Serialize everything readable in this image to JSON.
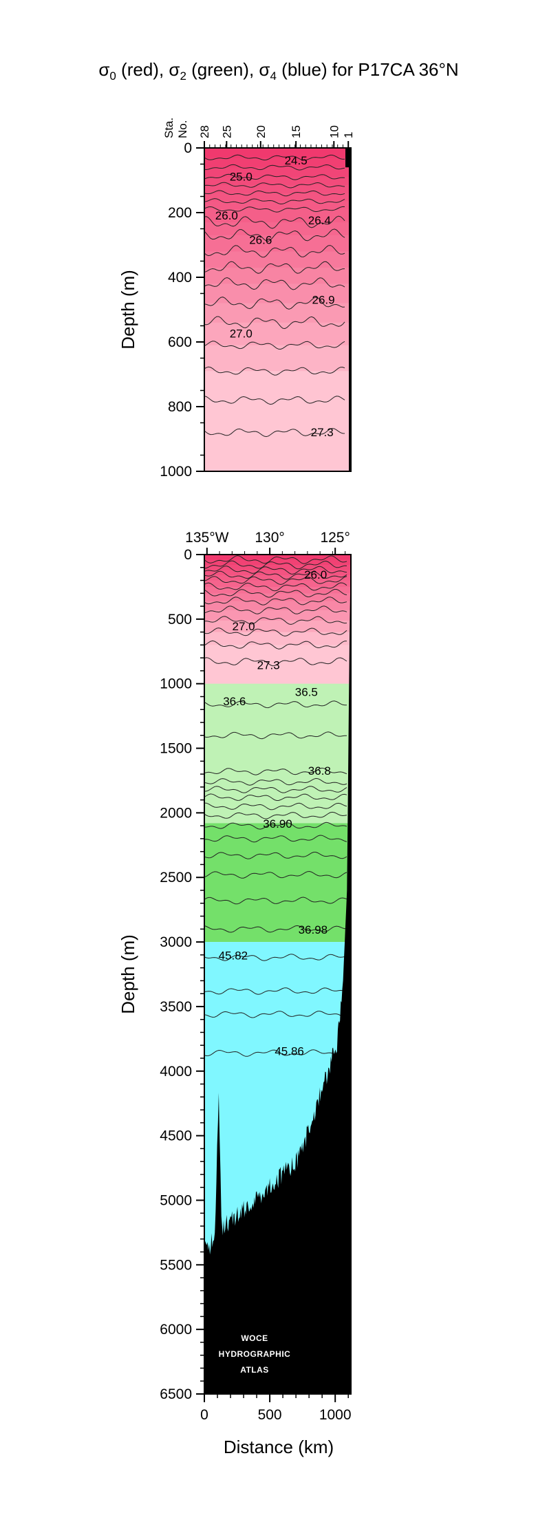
{
  "chart_data": [
    {
      "type": "contour",
      "panel": "upper",
      "title": "σ0 (red), σ2 (green), σ4 (blue) for P17CA 36°N",
      "ylabel": "Depth (m)",
      "ylim": [
        0,
        1000
      ],
      "y_ticks": [
        0,
        200,
        400,
        600,
        800,
        1000
      ],
      "y_tick_labels": [
        "0",
        "200",
        "400",
        "600",
        "800",
        "1000"
      ],
      "xlim": [
        0,
        1120
      ],
      "station_axis_title": [
        "Sta.",
        "No."
      ],
      "station_ticks": [
        {
          "station": 28,
          "label": "28",
          "distance_km": 0
        },
        {
          "station": 25,
          "label": "25",
          "distance_km": 170
        },
        {
          "station": 20,
          "label": "20",
          "distance_km": 430
        },
        {
          "station": 15,
          "label": "15",
          "distance_km": 700
        },
        {
          "station": 10,
          "label": "10",
          "distance_km": 990
        },
        {
          "station": 1,
          "label": "1",
          "distance_km": 1100
        }
      ],
      "contour_labels": [
        {
          "text": "24.5",
          "distance_km": 700,
          "depth_m": 45
        },
        {
          "text": "25.0",
          "distance_km": 280,
          "depth_m": 95
        },
        {
          "text": "26.0",
          "distance_km": 170,
          "depth_m": 215
        },
        {
          "text": "26.4",
          "distance_km": 880,
          "depth_m": 230
        },
        {
          "text": "26.6",
          "distance_km": 430,
          "depth_m": 290
        },
        {
          "text": "26.9",
          "distance_km": 910,
          "depth_m": 475
        },
        {
          "text": "27.0",
          "distance_km": 280,
          "depth_m": 580
        },
        {
          "text": "27.3",
          "distance_km": 900,
          "depth_m": 885
        }
      ]
    },
    {
      "type": "contour",
      "panel": "lower",
      "ylabel": "Depth (m)",
      "xlabel": "Distance (km)",
      "ylim": [
        0,
        6500
      ],
      "y_ticks": [
        0,
        500,
        1000,
        1500,
        2000,
        2500,
        3000,
        3500,
        4000,
        4500,
        5000,
        5500,
        6000,
        6500
      ],
      "y_tick_labels": [
        "0",
        "500",
        "1000",
        "1500",
        "2000",
        "2500",
        "3000",
        "3500",
        "4000",
        "4500",
        "5000",
        "5500",
        "6000",
        "6500"
      ],
      "xlim": [
        0,
        1120
      ],
      "x_ticks": [
        0,
        500,
        1000
      ],
      "x_tick_labels": [
        "0",
        "500",
        "1000"
      ],
      "lon_ticks": [
        {
          "label": "135°W",
          "distance_km": 20
        },
        {
          "label": "130°",
          "distance_km": 500
        },
        {
          "label": "125°",
          "distance_km": 1000
        }
      ],
      "layers": [
        {
          "name": "σ0",
          "color": "#f0537a",
          "depth_range_m": [
            0,
            1000
          ]
        },
        {
          "name": "σ2",
          "color": "#7de06a",
          "depth_range_m": [
            1000,
            3000
          ]
        },
        {
          "name": "σ4",
          "color": "#80f7ff",
          "depth_range_m": [
            3000,
            6500
          ]
        }
      ],
      "contour_labels": [
        {
          "text": "26.0",
          "distance_km": 850,
          "depth_m": 170
        },
        {
          "text": "27.0",
          "distance_km": 300,
          "depth_m": 570
        },
        {
          "text": "27.3",
          "distance_km": 490,
          "depth_m": 870
        },
        {
          "text": "36.6",
          "distance_km": 230,
          "depth_m": 1150
        },
        {
          "text": "36.5",
          "distance_km": 780,
          "depth_m": 1080
        },
        {
          "text": "36.8",
          "distance_km": 880,
          "depth_m": 1690
        },
        {
          "text": "36.90",
          "distance_km": 560,
          "depth_m": 2100
        },
        {
          "text": "36.98",
          "distance_km": 830,
          "depth_m": 2920
        },
        {
          "text": "45.82",
          "distance_km": 220,
          "depth_m": 3120
        },
        {
          "text": "45.86",
          "distance_km": 650,
          "depth_m": 3860
        }
      ],
      "bottom_profile": [
        {
          "distance_km": 0,
          "depth_m": 5300
        },
        {
          "distance_km": 30,
          "depth_m": 5380
        },
        {
          "distance_km": 80,
          "depth_m": 5250
        },
        {
          "distance_km": 110,
          "depth_m": 4200
        },
        {
          "distance_km": 130,
          "depth_m": 5200
        },
        {
          "distance_km": 200,
          "depth_m": 5150
        },
        {
          "distance_km": 300,
          "depth_m": 5080
        },
        {
          "distance_km": 400,
          "depth_m": 4980
        },
        {
          "distance_km": 500,
          "depth_m": 4880
        },
        {
          "distance_km": 600,
          "depth_m": 4800
        },
        {
          "distance_km": 700,
          "depth_m": 4720
        },
        {
          "distance_km": 800,
          "depth_m": 4450
        },
        {
          "distance_km": 880,
          "depth_m": 4200
        },
        {
          "distance_km": 960,
          "depth_m": 3950
        },
        {
          "distance_km": 1020,
          "depth_m": 3750
        },
        {
          "distance_km": 1060,
          "depth_m": 3300
        },
        {
          "distance_km": 1090,
          "depth_m": 2600
        },
        {
          "distance_km": 1110,
          "depth_m": 600
        },
        {
          "distance_km": 1120,
          "depth_m": 0
        }
      ],
      "logo": [
        "WOCE",
        "HYDROGRAPHIC",
        "ATLAS"
      ]
    }
  ]
}
